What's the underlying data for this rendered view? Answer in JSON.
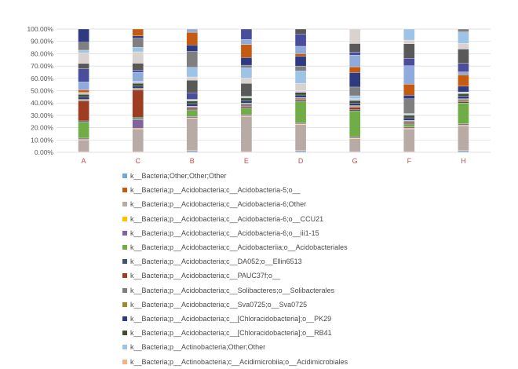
{
  "chart_data": {
    "type": "bar",
    "stacked": true,
    "percent": true,
    "title": "",
    "xlabel": "",
    "ylabel": "",
    "ylim": [
      0,
      100
    ],
    "yticks": [
      "0.00%",
      "10.00%",
      "20.00%",
      "30.00%",
      "40.00%",
      "50.00%",
      "60.00%",
      "70.00%",
      "80.00%",
      "90.00%",
      "100.00%"
    ],
    "grid": true,
    "legend_position": "bottom",
    "categories": [
      "A",
      "C",
      "B",
      "E",
      "D",
      "G",
      "F",
      "H"
    ],
    "series": [
      {
        "name": "k__Bacteria;Other;Other;Other",
        "color": "#6fa8dc",
        "values": [
          0.5,
          0.5,
          1,
          0.5,
          1,
          0.5,
          0.5,
          1
        ]
      },
      {
        "name": "k__Bacteria;p__Acidobacteria;c__Acidobacteria-5;o__",
        "color": "#c55a11",
        "values": [
          0.5,
          0.5,
          0.5,
          0.5,
          0.5,
          0.5,
          0.5,
          0.5
        ]
      },
      {
        "name": "k__Bacteria;p__Acidobacteria;c__Acidobacteria-6;Other",
        "color": "#b8aaa5",
        "values": [
          9,
          18,
          26,
          28,
          21,
          10,
          18,
          20
        ]
      },
      {
        "name": "k__Bacteria;p__Acidobacteria;c__Acidobacteria-6;o__CCU21",
        "color": "#ffc000",
        "values": [
          0.5,
          0.5,
          0.5,
          0.5,
          0.5,
          0.5,
          0.5,
          0.5
        ]
      },
      {
        "name": "k__Bacteria;p__Acidobacteria;c__Acidobacteria-6;o__iii1-15",
        "color": "#8064a2",
        "values": [
          1,
          7,
          1,
          1,
          1,
          1,
          1,
          1
        ]
      },
      {
        "name": "k__Bacteria;p__Acidobacteria;c__Acidobacteriia;o__Acidobacteriales",
        "color": "#70ad47",
        "values": [
          13,
          1,
          5,
          5,
          17,
          21,
          2,
          17
        ]
      },
      {
        "name": "k__Bacteria;p__Acidobacteria;c__DA052;o__Ellin6513",
        "color": "#44546a",
        "values": [
          1,
          1,
          1,
          1,
          1,
          1,
          1,
          1
        ]
      },
      {
        "name": "k__Bacteria;p__Acidobacteria;c__PAUC37f;o__",
        "color": "#9e3d22",
        "values": [
          16,
          22,
          1,
          1,
          1,
          2,
          1,
          1
        ]
      },
      {
        "name": "k__Bacteria;p__Acidobacteria;c__Solibacteres;o__Solibacterales",
        "color": "#7f7f7f",
        "values": [
          1,
          1,
          1,
          2,
          1,
          1,
          1,
          1
        ]
      },
      {
        "name": "k__Bacteria;p__Acidobacteria;c__Sva0725;o__Sva0725",
        "color": "#a5872a",
        "values": [
          0.5,
          0.5,
          0.5,
          0.5,
          0.5,
          0.5,
          0.5,
          0.5
        ]
      },
      {
        "name": "k__Bacteria;p__Acidobacteria;c__[Chloracidobacteria];o__PK29",
        "color": "#2e3b80",
        "values": [
          2,
          2,
          2,
          2,
          2,
          2,
          2,
          2
        ]
      },
      {
        "name": "k__Bacteria;p__Acidobacteria;c__[Chloracidobacteria];o__RB41",
        "color": "#3f4f2a",
        "values": [
          2,
          2,
          2,
          2,
          2,
          2,
          2,
          2
        ]
      },
      {
        "name": "k__Bacteria;p__Actinobacteria;Other;Other",
        "color": "#9dc3e6",
        "values": [
          1,
          1,
          1,
          1,
          1,
          1,
          1,
          1
        ]
      },
      {
        "name": "k__Bacteria;p__Actinobacteria;c__Acidimicrobiia;o__Acidimicrobiales",
        "color": "#f4b183",
        "values": [
          0.5,
          0.5,
          0.5,
          0.5,
          0.5,
          0.5,
          0.5,
          0.5
        ]
      }
    ]
  },
  "hidden_colors": [
    "#c55a11",
    "#8faadc",
    "#4a4e9a",
    "#595959",
    "#d9d2ce",
    "#9dc3e6",
    "#7f7f7f",
    "#2e3b80"
  ]
}
